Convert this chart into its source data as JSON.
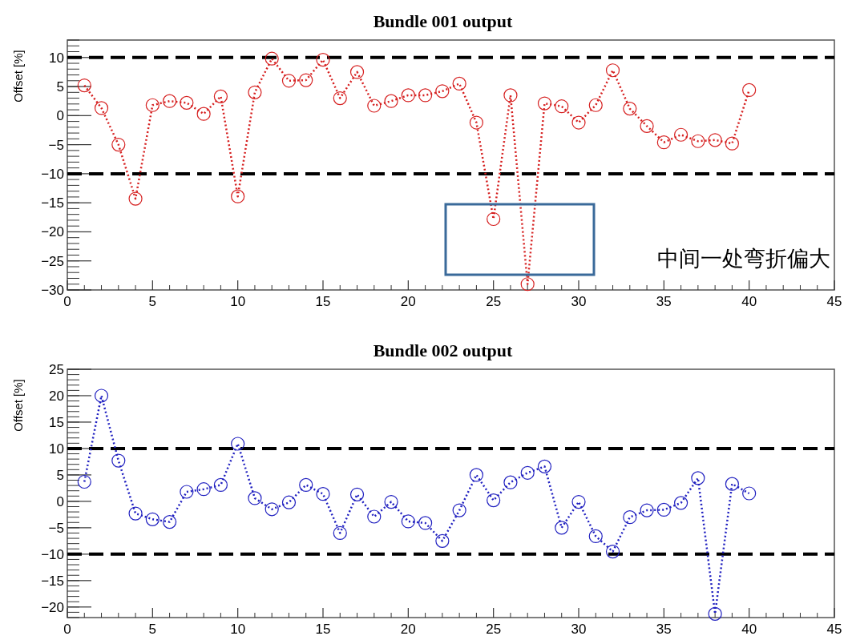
{
  "chart_data": [
    {
      "type": "line",
      "title": "Bundle 001 output",
      "ylabel": "Offset [%]",
      "marker": "circle",
      "line_style": "dotted",
      "grid": false,
      "x": [
        1,
        2,
        3,
        4,
        5,
        6,
        7,
        8,
        9,
        10,
        11,
        12,
        13,
        14,
        15,
        16,
        17,
        18,
        19,
        20,
        21,
        22,
        23,
        24,
        25,
        26,
        27,
        28,
        29,
        30,
        31,
        32,
        33,
        34,
        35,
        36,
        37,
        38,
        39,
        40
      ],
      "series": [
        {
          "color": "#d62020",
          "values": [
            5.2,
            1.3,
            -5,
            -14.3,
            1.8,
            2.5,
            2.2,
            0.3,
            3.3,
            -13.9,
            4,
            9.8,
            6,
            6.1,
            9.6,
            3,
            7.5,
            1.7,
            2.5,
            3.5,
            3.5,
            4.2,
            5.5,
            -1.2,
            -17.8,
            3.5,
            -29,
            2.1,
            1.6,
            -1.2,
            1.8,
            7.8,
            1.2,
            -1.8,
            -4.6,
            -3.3,
            -4.4,
            -4.2,
            -4.8,
            4.4
          ]
        }
      ],
      "xlim": [
        0,
        45
      ],
      "xticks": [
        0,
        5,
        10,
        15,
        20,
        25,
        30,
        35,
        40,
        45
      ],
      "ylim": [
        -30,
        13
      ],
      "yticks": [
        -30,
        -25,
        -20,
        -15,
        -10,
        -5,
        0,
        5,
        10
      ],
      "ref_lines": [
        {
          "axis": "y",
          "value": 10,
          "color": "#000000",
          "line_style": "dashed"
        },
        {
          "axis": "y",
          "value": -10,
          "color": "#000000",
          "line_style": "dashed"
        }
      ],
      "annotations": [
        "中间一处弯折偏大"
      ]
    },
    {
      "type": "line",
      "title": "Bundle 002 output",
      "ylabel": "Offset [%]",
      "marker": "circle",
      "line_style": "dotted",
      "grid": false,
      "x": [
        1,
        2,
        3,
        4,
        5,
        6,
        7,
        8,
        9,
        10,
        11,
        12,
        13,
        14,
        15,
        16,
        17,
        18,
        19,
        20,
        21,
        22,
        23,
        24,
        25,
        26,
        27,
        28,
        29,
        30,
        31,
        32,
        33,
        34,
        35,
        36,
        37,
        38,
        39,
        40
      ],
      "series": [
        {
          "color": "#2020c0",
          "values": [
            3.7,
            20,
            7.7,
            -2.3,
            -3.4,
            -3.9,
            1.8,
            2.3,
            3.1,
            10.9,
            0.6,
            -1.5,
            -0.2,
            3.1,
            1.4,
            -6,
            1.3,
            -2.9,
            -0.1,
            -3.8,
            -4.1,
            -7.5,
            -1.7,
            5,
            0.2,
            3.6,
            5.4,
            6.6,
            -5,
            -0.1,
            -6.6,
            -9.5,
            -3,
            -1.7,
            -1.6,
            -0.3,
            4.4,
            -21.3,
            3.3,
            1.5
          ]
        }
      ],
      "xlim": [
        0,
        45
      ],
      "xticks": [
        0,
        5,
        10,
        15,
        20,
        25,
        30,
        35,
        40,
        45
      ],
      "ylim": [
        -22,
        25
      ],
      "yticks": [
        -20,
        -15,
        -10,
        -5,
        0,
        5,
        10,
        15,
        20,
        25
      ],
      "ref_lines": [
        {
          "axis": "y",
          "value": 10,
          "color": "#000000",
          "line_style": "dashed"
        },
        {
          "axis": "y",
          "value": -10,
          "color": "#000000",
          "line_style": "dashed"
        }
      ]
    }
  ]
}
